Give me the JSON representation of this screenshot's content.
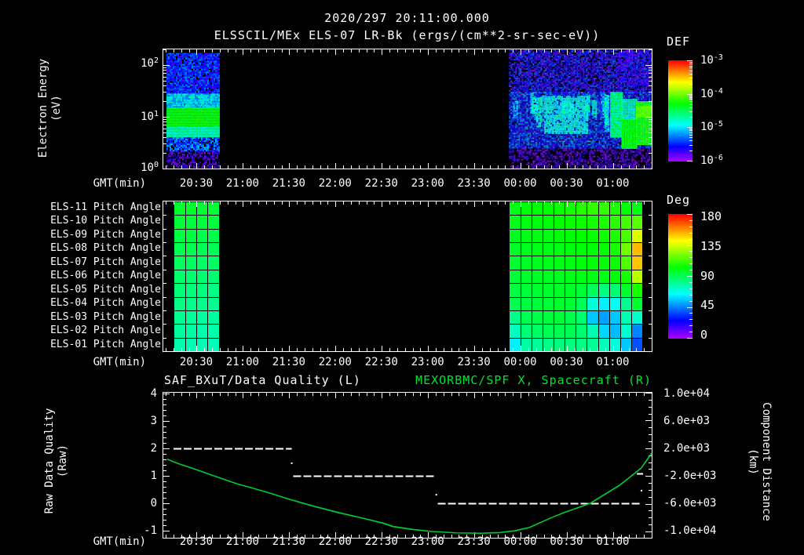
{
  "header": {
    "timestamp": "2020/297 20:11:00.000",
    "instrument_title": "ELSSCIL/MEx ELS-07 LR-Bk  (ergs/(cm**2-sr-sec-eV))"
  },
  "x_axis": {
    "title": "GMT(min)",
    "labels": [
      "20:30",
      "21:00",
      "21:30",
      "22:00",
      "22:30",
      "23:00",
      "23:30",
      "00:00",
      "00:30",
      "01:00"
    ]
  },
  "colors": {
    "background": "#000000",
    "text": "#ffffff",
    "title_green": "#00e432",
    "curve_green": "#00cd32",
    "quality_white": "#ffffff"
  },
  "top_panel": {
    "ylabel_line1": "Electron Energy",
    "ylabel_line2": "(eV)",
    "y_ticks": [
      {
        "base": "10",
        "exp": "2"
      },
      {
        "base": "10",
        "exp": "1"
      },
      {
        "base": "10",
        "exp": "0"
      }
    ],
    "colorbar": {
      "label": "DEF",
      "tick_base": "10",
      "tick_exps": [
        "-3",
        "-4",
        "-5",
        "-6"
      ]
    }
  },
  "middle_panel": {
    "row_labels": [
      "ELS-11 Pitch Angle",
      "ELS-10 Pitch Angle",
      "ELS-09 Pitch Angle",
      "ELS-08 Pitch Angle",
      "ELS-07 Pitch Angle",
      "ELS-06 Pitch Angle",
      "ELS-05 Pitch Angle",
      "ELS-04 Pitch Angle",
      "ELS-03 Pitch Angle",
      "ELS-02 Pitch Angle",
      "ELS-01 Pitch Angle"
    ],
    "colorbar": {
      "label": "Deg",
      "ticks": [
        "180",
        "135",
        "90",
        "45",
        "0"
      ]
    }
  },
  "bottom_panel": {
    "left_title": "SAF_BXuT/Data Quality (L)",
    "right_title": "MEXORBMC/SPF X, Spacecraft (R)",
    "ylabel_left_line1": "Raw Data Quality",
    "ylabel_left_line2": "(Raw)",
    "ylabel_right_line1": "Component Distance",
    "ylabel_right_line2": "(km)",
    "left_ticks": [
      "4",
      "3",
      "2",
      "1",
      "0",
      "-1"
    ],
    "right_ticks": [
      "1.0e+04",
      "6.0e+03",
      "2.0e+03",
      "-2.0e+03",
      "-6.0e+03",
      "-1.0e+04"
    ]
  },
  "chart_data": [
    {
      "type": "heatmap",
      "title": "ELSSCIL/MEx ELS-07 LR-Bk electron energy spectrogram",
      "xlabel": "GMT(min)",
      "ylabel": "Electron Energy (eV)",
      "x_tick_labels": [
        "20:30",
        "21:00",
        "21:30",
        "22:00",
        "22:30",
        "23:00",
        "23:30",
        "00:00",
        "00:30",
        "01:00"
      ],
      "y_scale": "log",
      "y_range_eV": [
        1,
        200
      ],
      "value_units": "DEF ergs/(cm**2-sr-sec-eV)",
      "value_scale": "log",
      "value_range": [
        1e-06,
        0.001
      ],
      "data_intervals": [
        {
          "start": "20:10",
          "end": "20:44"
        },
        {
          "start": "23:50",
          "end": "01:25"
        }
      ],
      "regions": [
        {
          "x": [
            0.0064,
            0.114
          ],
          "energy_eV": [
            28,
            170
          ],
          "flux": 3.2e-06,
          "noise": 0.1,
          "density": 0.92
        },
        {
          "x": [
            0.0064,
            0.114
          ],
          "energy_eV": [
            15,
            28
          ],
          "flux": 9.8e-06,
          "noise": 0.08,
          "density": 1
        },
        {
          "x": [
            0.0064,
            0.114
          ],
          "energy_eV": [
            6.5,
            15
          ],
          "flux": 4.8e-05,
          "noise": 0.07,
          "density": 1
        },
        {
          "x": [
            0.0064,
            0.114
          ],
          "energy_eV": [
            4,
            6.5
          ],
          "flux": 1.8e-05,
          "noise": 0.06,
          "density": 1
        },
        {
          "x": [
            0.0064,
            0.114
          ],
          "energy_eV": [
            2.2,
            4
          ],
          "flux": 4.6e-06,
          "noise": 0.1,
          "density": 0.85
        },
        {
          "x": [
            0.0064,
            0.114
          ],
          "energy_eV": [
            1.05,
            2.2
          ],
          "flux": 1.7e-06,
          "noise": 0.07,
          "density": 0.5
        },
        {
          "x": [
            0.708,
            1.0
          ],
          "energy_eV": [
            30,
            200
          ],
          "flux": 2.5e-06,
          "noise": 0.1,
          "density": 0.72
        },
        {
          "x": [
            0.708,
            1.0
          ],
          "energy_eV": [
            2.5,
            30
          ],
          "flux": 3.5e-06,
          "noise": 0.12,
          "density": 0.92
        },
        {
          "x": [
            0.708,
            1.0
          ],
          "energy_eV": [
            1.05,
            2.5
          ],
          "flux": 1.6e-06,
          "noise": 0.07,
          "density": 0.45
        },
        {
          "x": [
            0.78,
            0.87
          ],
          "energy_eV": [
            5,
            25
          ],
          "flux": 1.4e-05,
          "noise": 0.1,
          "density": 0.85
        },
        {
          "x": [
            0.915,
            0.938
          ],
          "energy_eV": [
            4,
            30
          ],
          "flux": 2.2e-05,
          "noise": 0.08,
          "density": 1
        },
        {
          "x": [
            0.938,
            0.968
          ],
          "energy_eV": [
            2.5,
            9
          ],
          "flux": 4.5e-05,
          "noise": 0.06,
          "density": 1
        },
        {
          "x": [
            0.938,
            0.968
          ],
          "energy_eV": [
            9,
            22
          ],
          "flux": 1.8e-05,
          "noise": 0.08,
          "density": 1
        },
        {
          "x": [
            0.968,
            1.0
          ],
          "energy_eV": [
            3,
            20
          ],
          "flux": 5.5e-05,
          "noise": 0.05,
          "density": 1
        },
        {
          "x": [
            0.968,
            1.0
          ],
          "energy_eV": [
            10,
            16
          ],
          "flux": 8.9e-05,
          "noise": 0.03,
          "density": 1
        },
        {
          "x": [
            0.93,
            1.0
          ],
          "energy_eV": [
            40,
            200
          ],
          "flux": 2e-06,
          "noise": 0.08,
          "density": 0.4
        }
      ],
      "streaks": {
        "count": 16,
        "x": [
          0.712,
          0.91
        ],
        "energy_eV": [
          4,
          28
        ],
        "flux": 1.1e-05,
        "noise": 0.12
      }
    },
    {
      "type": "heatmap",
      "title": "ELS pitch angle panel",
      "xlabel": "GMT(min)",
      "row_labels": [
        "ELS-11 Pitch Angle",
        "ELS-10 Pitch Angle",
        "ELS-09 Pitch Angle",
        "ELS-08 Pitch Angle",
        "ELS-07 Pitch Angle",
        "ELS-06 Pitch Angle",
        "ELS-05 Pitch Angle",
        "ELS-04 Pitch Angle",
        "ELS-03 Pitch Angle",
        "ELS-02 Pitch Angle",
        "ELS-01 Pitch Angle"
      ],
      "value_units": "degrees",
      "value_range": [
        0,
        180
      ],
      "left_block": {
        "x": [
          0.021,
          0.114
        ],
        "columns": 4,
        "values_by_row": [
          [
            96,
            96,
            95,
            95
          ],
          [
            95,
            94,
            94,
            94
          ],
          [
            93,
            93,
            92,
            92
          ],
          [
            91,
            91,
            90,
            90
          ],
          [
            89,
            89,
            88,
            88
          ],
          [
            87,
            86,
            86,
            86
          ],
          [
            85,
            84,
            84,
            83
          ],
          [
            83,
            82,
            82,
            81
          ],
          [
            81,
            80,
            79,
            79
          ],
          [
            79,
            78,
            77,
            77
          ],
          [
            77,
            76,
            75,
            75
          ]
        ]
      },
      "right_block": {
        "x": [
          0.708,
          0.981
        ],
        "columns": 12,
        "values_by_row": [
          [
            100,
            101,
            102,
            103,
            104,
            106,
            108,
            110,
            110,
            107,
            102,
            100
          ],
          [
            99,
            100,
            101,
            102,
            103,
            104,
            105,
            106,
            107,
            109,
            113,
            116
          ],
          [
            98,
            99,
            100,
            100,
            101,
            102,
            103,
            104,
            105,
            107,
            114,
            136
          ],
          [
            97,
            98,
            99,
            100,
            100,
            101,
            102,
            102,
            103,
            106,
            120,
            152
          ],
          [
            96,
            97,
            98,
            99,
            100,
            100,
            101,
            101,
            102,
            104,
            115,
            150
          ],
          [
            95,
            96,
            97,
            98,
            98,
            99,
            100,
            100,
            100,
            102,
            106,
            131
          ],
          [
            93,
            94,
            95,
            96,
            97,
            97,
            95,
            89,
            84,
            86,
            96,
            106
          ],
          [
            91,
            93,
            94,
            95,
            96,
            95,
            90,
            70,
            62,
            66,
            81,
            96
          ],
          [
            82,
            90,
            92,
            93,
            94,
            92,
            86,
            56,
            50,
            56,
            76,
            72
          ],
          [
            74,
            85,
            88,
            90,
            91,
            90,
            86,
            76,
            58,
            54,
            72,
            46
          ],
          [
            62,
            78,
            80,
            82,
            84,
            84,
            83,
            80,
            75,
            70,
            56,
            38
          ]
        ]
      }
    },
    {
      "type": "line",
      "title": "SAF_BXuT/Data Quality (L)  and  MEXORBMC/SPF X, Spacecraft (R)",
      "xlabel": "GMT(min)",
      "left_axis": {
        "label": "Raw Data Quality (Raw)",
        "ylim": [
          -1,
          4
        ]
      },
      "right_axis": {
        "label": "Component Distance (km)",
        "ylim": [
          -10000,
          10000
        ]
      },
      "series": [
        {
          "name": "SAF_BXuT/Data Quality (L)",
          "axis": "left",
          "style": "dashed-steps",
          "segments": [
            {
              "value": 2,
              "x_frac": [
                0.021,
                0.263
              ]
            },
            {
              "value": 1,
              "x_frac": [
                0.266,
                0.555
              ]
            },
            {
              "value": 0,
              "x_frac": [
                0.562,
                0.979
              ]
            }
          ],
          "transition_marks": [
            {
              "x_frac": 0.263,
              "value": 1.46,
              "type": "dot"
            },
            {
              "x_frac": 0.559,
              "value": 0.31,
              "type": "dot"
            },
            {
              "x_frac": 0.976,
              "value": 1.09,
              "type": "dash"
            },
            {
              "x_frac": 0.979,
              "value": 0.46,
              "type": "dot"
            }
          ]
        },
        {
          "name": "MEXORBMC/SPF X, Spacecraft (R)",
          "axis": "right",
          "style": "solid-line",
          "units": "km",
          "points": [
            [
              0.008,
              420
            ],
            [
              0.03,
              -200
            ],
            [
              0.06,
              -900
            ],
            [
              0.1,
              -1900
            ],
            [
              0.15,
              -3100
            ],
            [
              0.21,
              -4300
            ],
            [
              0.26,
              -5400
            ],
            [
              0.31,
              -6400
            ],
            [
              0.36,
              -7300
            ],
            [
              0.41,
              -8100
            ],
            [
              0.45,
              -8800
            ],
            [
              0.47,
              -9280
            ],
            [
              0.51,
              -9700
            ],
            [
              0.55,
              -10000
            ],
            [
              0.6,
              -10200
            ],
            [
              0.65,
              -10250
            ],
            [
              0.69,
              -10150
            ],
            [
              0.72,
              -9900
            ],
            [
              0.75,
              -9400
            ],
            [
              0.79,
              -8150
            ],
            [
              0.82,
              -7300
            ],
            [
              0.86,
              -6300
            ],
            [
              0.875,
              -5900
            ],
            [
              0.905,
              -4600
            ],
            [
              0.935,
              -3300
            ],
            [
              0.955,
              -2200
            ],
            [
              0.979,
              -825
            ],
            [
              0.995,
              800
            ],
            [
              1.0,
              1300
            ]
          ]
        }
      ]
    }
  ]
}
